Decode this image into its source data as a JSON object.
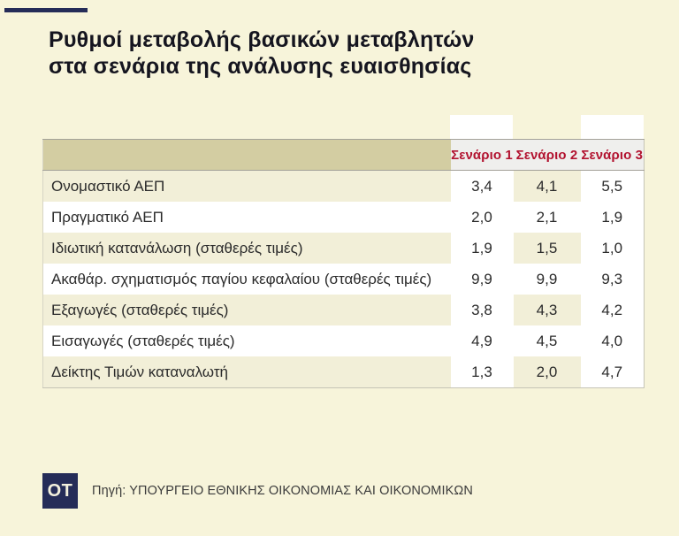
{
  "header": {
    "title_line1": "Ρυθμοί μεταβολής βασικών μεταβλητών",
    "title_line2": "στα σενάρια της ανάλυσης ευαισθησίας"
  },
  "chart_data": {
    "type": "table",
    "title": "Ρυθμοί μεταβολής βασικών μεταβλητών στα σενάρια της ανάλυσης ευαισθησίας",
    "columns": [
      "",
      "Σενάριο 1",
      "Σενάριο 2",
      "Σενάριο 3"
    ],
    "rows": [
      {
        "label": "Ονομαστικό ΑΕΠ",
        "values": [
          "3,4",
          "4,1",
          "5,5"
        ]
      },
      {
        "label": "Πραγματικό ΑΕΠ",
        "values": [
          "2,0",
          "2,1",
          "1,9"
        ]
      },
      {
        "label": "Ιδιωτική κατανάλωση (σταθερές τιμές)",
        "values": [
          "1,9",
          "1,5",
          "1,0"
        ]
      },
      {
        "label": "Ακαθάρ. σχηματισμός παγίου κεφαλαίου (σταθερές τιμές)",
        "values": [
          "9,9",
          "9,9",
          "9,3"
        ]
      },
      {
        "label": "Εξαγωγές (σταθερές τιμές)",
        "values": [
          "3,8",
          "4,3",
          "4,2"
        ]
      },
      {
        "label": "Εισαγωγές (σταθερές τιμές)",
        "values": [
          "4,9",
          "4,5",
          "4,0"
        ]
      },
      {
        "label": "Δείκτης Τιμών καταναλωτή",
        "values": [
          "1,3",
          "2,0",
          "4,7"
        ]
      }
    ]
  },
  "footer": {
    "logo_text": "OT",
    "source": "Πηγή: ΥΠΟΥΡΓΕΙΟ ΕΘΝΙΚΗΣ ΟΙΚΟΝΟΜΙΑΣ ΚΑΙ ΟΙΚΟΝΟΜΙΚΩΝ"
  },
  "colors": {
    "page_background": "#f7f4da",
    "navy_accent": "#252c58",
    "header_red": "#b2122f",
    "header_gray": "#efefed",
    "header_label_tan": "#d3cda2",
    "row_stripe_beige": "#f2efd8",
    "row_white": "#ffffff"
  }
}
